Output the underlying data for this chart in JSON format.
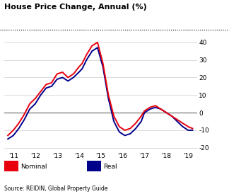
{
  "title": "House Price Change, Annual (%)",
  "source": "Source: REIDIN, Global Property Guide",
  "legend_nominal": "Nominal",
  "legend_real": "Real",
  "nominal_color": "#e8000d",
  "real_color": "#00008b",
  "background_color": "#ffffff",
  "ylim": [
    -22,
    42
  ],
  "yticks": [
    -20,
    -10,
    0,
    10,
    20,
    30,
    40
  ],
  "x_labels": [
    "'11",
    "'12",
    "'13",
    "'14",
    "'15",
    "'16",
    "'17",
    "'18",
    "'19"
  ],
  "x_positions": [
    2011,
    2012,
    2013,
    2014,
    2015,
    2016,
    2017,
    2018,
    2019
  ],
  "nominal_x": [
    2010.75,
    2011.0,
    2011.25,
    2011.5,
    2011.75,
    2012.0,
    2012.25,
    2012.5,
    2012.75,
    2013.0,
    2013.25,
    2013.5,
    2013.75,
    2014.0,
    2014.15,
    2014.35,
    2014.6,
    2014.85,
    2015.1,
    2015.35,
    2015.6,
    2015.85,
    2016.1,
    2016.35,
    2016.6,
    2016.85,
    2017.0,
    2017.25,
    2017.5,
    2017.75,
    2018.0,
    2018.25,
    2018.5,
    2018.75,
    2019.0,
    2019.2
  ],
  "nominal_y": [
    -13,
    -10,
    -6,
    -1,
    5,
    8,
    12,
    16,
    17,
    22,
    23,
    20,
    22,
    26,
    28,
    33,
    38,
    40,
    28,
    10,
    -2,
    -8,
    -10,
    -9,
    -6,
    -2,
    1,
    3,
    4,
    2,
    0,
    -2,
    -4,
    -6,
    -8,
    -9
  ],
  "real_x": [
    2010.75,
    2011.0,
    2011.25,
    2011.5,
    2011.75,
    2012.0,
    2012.25,
    2012.5,
    2012.75,
    2013.0,
    2013.25,
    2013.5,
    2013.75,
    2014.0,
    2014.15,
    2014.35,
    2014.6,
    2014.85,
    2015.1,
    2015.35,
    2015.6,
    2015.85,
    2016.1,
    2016.35,
    2016.6,
    2016.85,
    2017.0,
    2017.25,
    2017.5,
    2017.75,
    2018.0,
    2018.25,
    2018.5,
    2018.75,
    2019.0,
    2019.2
  ],
  "real_y": [
    -15,
    -13,
    -9,
    -4,
    2,
    5,
    10,
    14,
    15,
    19,
    20,
    18,
    20,
    23,
    25,
    30,
    35,
    37,
    26,
    8,
    -5,
    -11,
    -13,
    -12,
    -9,
    -5,
    0,
    2,
    3,
    2,
    0,
    -2,
    -5,
    -8,
    -10,
    -10
  ]
}
